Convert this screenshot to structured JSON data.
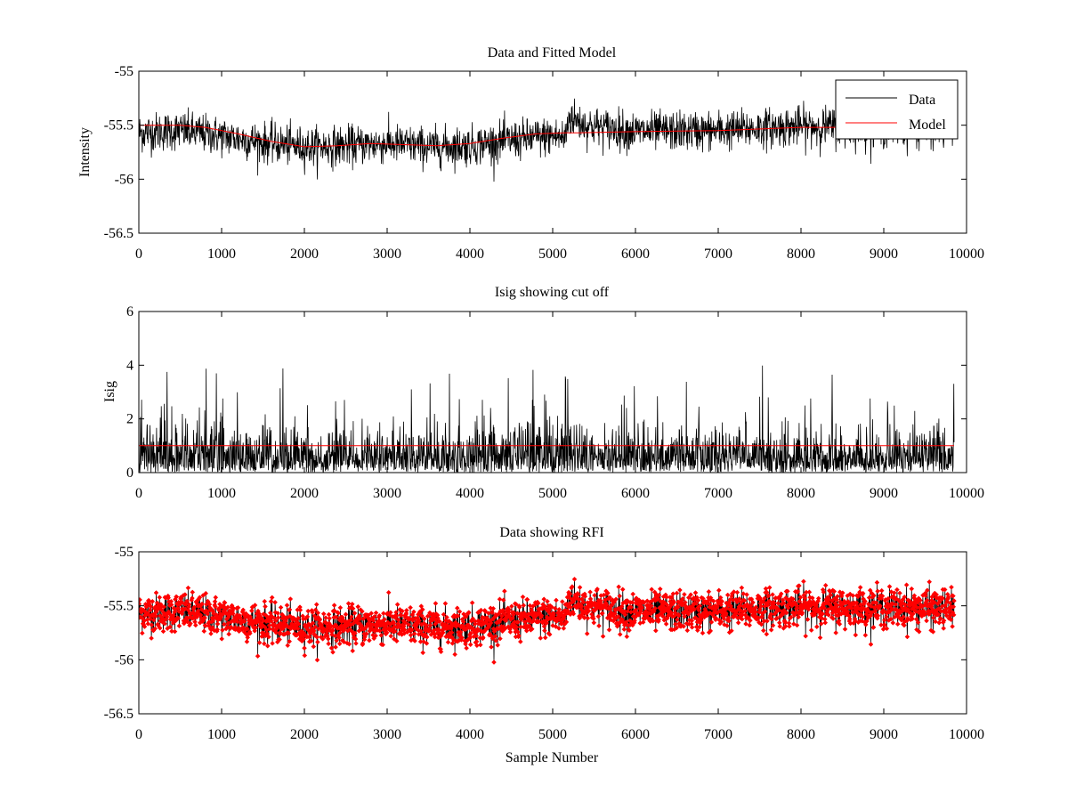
{
  "colors": {
    "data": "#000000",
    "model": "#ff0000",
    "axis": "#000000",
    "background": "#ffffff"
  },
  "chart_data": [
    {
      "type": "line",
      "title": "Data and Fitted Model",
      "xlabel": "",
      "ylabel": "Intensity",
      "xlim": [
        0,
        10000
      ],
      "ylim": [
        -56.5,
        -55
      ],
      "xticks": [
        "0",
        "1000",
        "2000",
        "3000",
        "4000",
        "5000",
        "6000",
        "7000",
        "8000",
        "9000",
        "10000"
      ],
      "yticks": [
        "-55",
        "-55.5",
        "-56",
        "-56.5"
      ],
      "xtick_values": [
        0,
        1000,
        2000,
        3000,
        4000,
        5000,
        6000,
        7000,
        8000,
        9000,
        10000
      ],
      "ytick_values": [
        -55,
        -55.5,
        -56,
        -56.5
      ],
      "legend": {
        "placement": "top-right",
        "entries": [
          "Data",
          "Model"
        ]
      },
      "series": [
        {
          "name": "Data",
          "color": "#000000",
          "style": "noisy-line",
          "x_range": [
            0,
            9850
          ],
          "noise_amplitude": 0.12,
          "envelope_x": [
            0,
            500,
            1000,
            1500,
            2000,
            2500,
            3000,
            3500,
            4000,
            4500,
            5000,
            5150,
            5200,
            5400,
            6000,
            7000,
            8000,
            9000,
            9850
          ],
          "envelope_y": [
            -55.57,
            -55.55,
            -55.6,
            -55.66,
            -55.7,
            -55.69,
            -55.67,
            -55.7,
            -55.69,
            -55.64,
            -55.6,
            -55.62,
            -55.42,
            -55.5,
            -55.56,
            -55.55,
            -55.51,
            -55.52,
            -55.53
          ]
        },
        {
          "name": "Model",
          "color": "#ff0000",
          "style": "line",
          "x": [
            0,
            500,
            800,
            1200,
            1600,
            2000,
            2400,
            2800,
            3200,
            3600,
            4000,
            4400,
            4800,
            5150,
            5300,
            6000,
            7000,
            8000,
            8500,
            9000,
            9850
          ],
          "y": [
            -55.5,
            -55.5,
            -55.52,
            -55.58,
            -55.65,
            -55.7,
            -55.69,
            -55.67,
            -55.68,
            -55.69,
            -55.67,
            -55.62,
            -55.58,
            -55.57,
            -55.57,
            -55.56,
            -55.55,
            -55.52,
            -55.52,
            -55.54,
            -55.55
          ]
        }
      ]
    },
    {
      "type": "line",
      "title": "Isig showing cut off",
      "xlabel": "",
      "ylabel": "Isig",
      "xlim": [
        0,
        10000
      ],
      "ylim": [
        0,
        6
      ],
      "xticks": [
        "0",
        "1000",
        "2000",
        "3000",
        "4000",
        "5000",
        "6000",
        "7000",
        "8000",
        "9000",
        "10000"
      ],
      "yticks": [
        "0",
        "2",
        "4",
        "6"
      ],
      "xtick_values": [
        0,
        1000,
        2000,
        3000,
        4000,
        5000,
        6000,
        7000,
        8000,
        9000,
        10000
      ],
      "ytick_values": [
        0,
        2,
        4,
        6
      ],
      "series": [
        {
          "name": "Isig",
          "color": "#000000",
          "style": "noisy-positive",
          "x_range": [
            0,
            9850
          ],
          "base_level": 0.8,
          "typical_peak": 2.2,
          "max_peak": 4.0
        },
        {
          "name": "Cut off",
          "color": "#ff0000",
          "style": "line",
          "x": [
            0,
            9850
          ],
          "y": [
            1,
            1
          ]
        }
      ]
    },
    {
      "type": "line",
      "title": "Data showing RFI",
      "xlabel": "Sample Number",
      "ylabel": "",
      "xlim": [
        0,
        10000
      ],
      "ylim": [
        -56.5,
        -55
      ],
      "xticks": [
        "0",
        "1000",
        "2000",
        "3000",
        "4000",
        "5000",
        "6000",
        "7000",
        "8000",
        "9000",
        "10000"
      ],
      "yticks": [
        "-55",
        "-55.5",
        "-56",
        "-56.5"
      ],
      "xtick_values": [
        0,
        1000,
        2000,
        3000,
        4000,
        5000,
        6000,
        7000,
        8000,
        9000,
        10000
      ],
      "ytick_values": [
        -55,
        -55.5,
        -56,
        -56.5
      ],
      "series": [
        {
          "name": "Data",
          "color": "#000000",
          "style": "noisy-line",
          "x_range": [
            0,
            9850
          ],
          "noise_amplitude": 0.12,
          "envelope_x": [
            0,
            500,
            1000,
            1500,
            2000,
            2500,
            3000,
            3500,
            4000,
            4500,
            5000,
            5150,
            5200,
            5400,
            6000,
            7000,
            8000,
            9000,
            9850
          ],
          "envelope_y": [
            -55.57,
            -55.55,
            -55.6,
            -55.66,
            -55.7,
            -55.69,
            -55.67,
            -55.7,
            -55.69,
            -55.64,
            -55.6,
            -55.62,
            -55.42,
            -55.5,
            -55.56,
            -55.55,
            -55.51,
            -55.52,
            -55.53
          ]
        },
        {
          "name": "RFI",
          "color": "#ff0000",
          "style": "markers",
          "marker": "diamond",
          "x_range": [
            0,
            9850
          ]
        }
      ]
    }
  ]
}
